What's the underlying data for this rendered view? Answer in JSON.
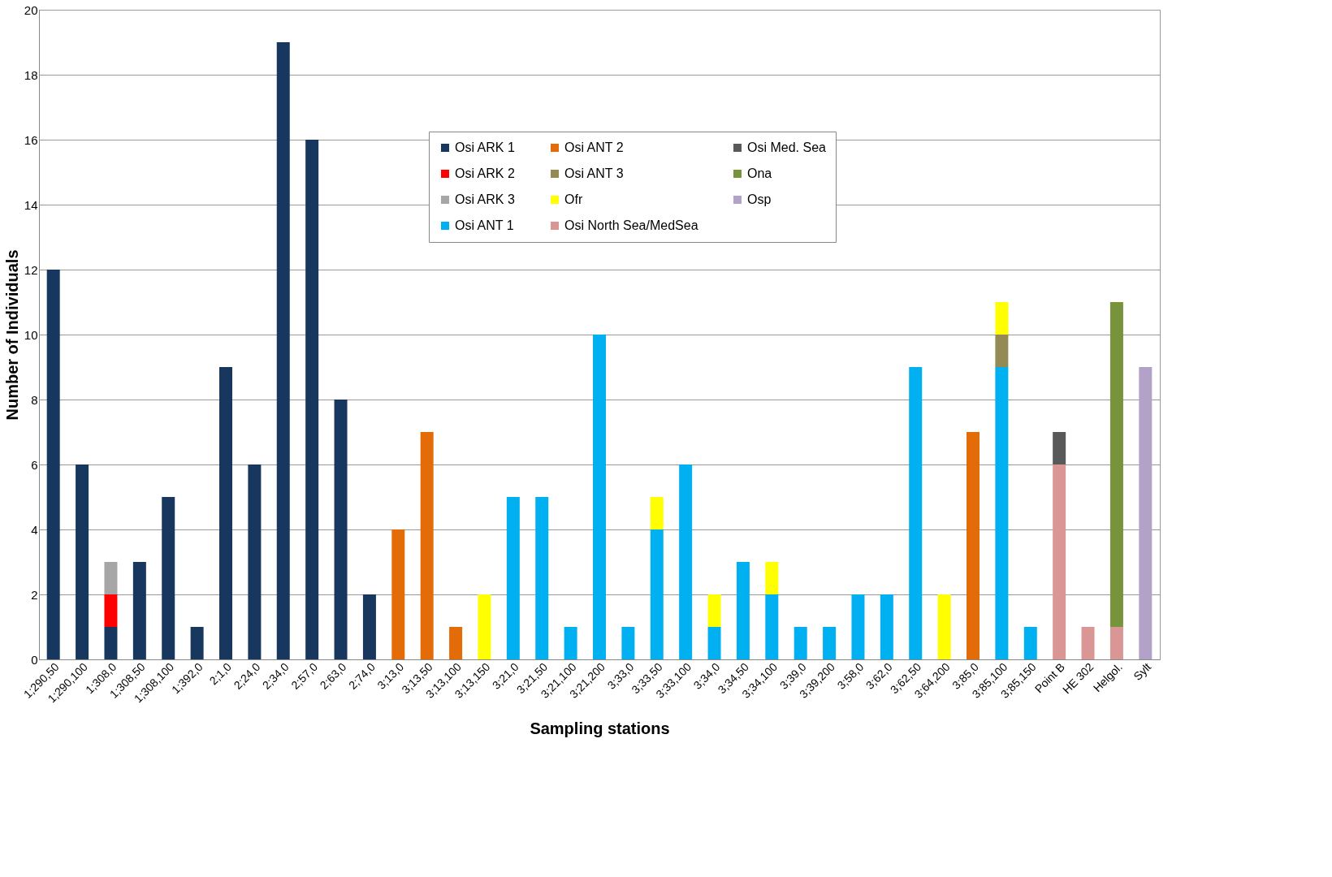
{
  "chart_data": {
    "type": "bar",
    "stacked": true,
    "xlabel": "Sampling stations",
    "ylabel": "Number of Individuals",
    "categories": [
      "1;290,50",
      "1;290,100",
      "1;308,0",
      "1;308,50",
      "1;308,100",
      "1;392,0",
      "2;1,0",
      "2;24,0",
      "2;34,0",
      "2;57,0",
      "2;63,0",
      "2;74,0",
      "3;13,0",
      "3;13,50",
      "3;13,100",
      "3;13,150",
      "3;21,0",
      "3;21,50",
      "3;21,100",
      "3;21,200",
      "3;33,0",
      "3;33,50",
      "3;33,100",
      "3;34,0",
      "3;34,50",
      "3;34,100",
      "3;39,0",
      "3;39,200",
      "3;58,0",
      "3;62,0",
      "3;62,50",
      "3;64,200",
      "3;85,0",
      "3;85,100",
      "3;85,150",
      "Point B",
      "HE 302",
      "Helgol.",
      "Sylt"
    ],
    "series": [
      {
        "name": "Osi ARK 1",
        "color": "#17375e",
        "values": [
          12,
          6,
          1,
          3,
          5,
          1,
          9,
          6,
          19,
          16,
          8,
          2,
          null,
          null,
          null,
          null,
          null,
          null,
          null,
          null,
          null,
          null,
          null,
          null,
          null,
          null,
          null,
          null,
          null,
          null,
          null,
          null,
          null,
          null,
          null,
          null,
          null,
          null,
          null
        ]
      },
      {
        "name": "Osi ARK 2",
        "color": "#ff0000",
        "values": [
          null,
          null,
          1,
          null,
          null,
          null,
          null,
          null,
          null,
          null,
          null,
          null,
          null,
          null,
          null,
          null,
          null,
          null,
          null,
          null,
          null,
          null,
          null,
          null,
          null,
          null,
          null,
          null,
          null,
          null,
          null,
          null,
          null,
          null,
          null,
          null,
          null,
          null,
          null
        ]
      },
      {
        "name": "Osi ARK 3",
        "color": "#a6a6a6",
        "values": [
          null,
          null,
          1,
          null,
          null,
          null,
          null,
          null,
          null,
          null,
          null,
          null,
          null,
          null,
          null,
          null,
          null,
          null,
          null,
          null,
          null,
          null,
          null,
          null,
          null,
          null,
          null,
          null,
          null,
          null,
          null,
          null,
          null,
          null,
          null,
          null,
          null,
          null,
          null
        ]
      },
      {
        "name": "Osi ANT 1",
        "color": "#00b0f0",
        "values": [
          null,
          null,
          null,
          null,
          null,
          null,
          null,
          null,
          null,
          null,
          null,
          null,
          null,
          null,
          null,
          null,
          5,
          5,
          1,
          10,
          1,
          4,
          6,
          1,
          3,
          2,
          1,
          1,
          2,
          2,
          9,
          null,
          null,
          9,
          1,
          null,
          null,
          null,
          null
        ]
      },
      {
        "name": "Osi ANT 2",
        "color": "#e36c09",
        "values": [
          null,
          null,
          null,
          null,
          null,
          null,
          null,
          null,
          null,
          null,
          null,
          null,
          4,
          7,
          1,
          null,
          null,
          null,
          null,
          null,
          null,
          null,
          null,
          null,
          null,
          null,
          null,
          null,
          null,
          null,
          null,
          null,
          7,
          null,
          null,
          null,
          null,
          null,
          null
        ]
      },
      {
        "name": "Osi ANT 3",
        "color": "#948a54",
        "values": [
          null,
          null,
          null,
          null,
          null,
          null,
          null,
          null,
          null,
          null,
          null,
          null,
          null,
          null,
          null,
          null,
          null,
          null,
          null,
          null,
          null,
          null,
          null,
          null,
          null,
          null,
          null,
          null,
          null,
          null,
          null,
          null,
          null,
          1,
          null,
          null,
          null,
          null,
          null
        ]
      },
      {
        "name": "Ofr",
        "color": "#ffff00",
        "values": [
          null,
          null,
          null,
          null,
          null,
          null,
          null,
          null,
          null,
          null,
          null,
          null,
          null,
          null,
          null,
          2,
          null,
          null,
          null,
          null,
          null,
          1,
          null,
          1,
          null,
          1,
          null,
          null,
          null,
          null,
          null,
          2,
          null,
          1,
          null,
          null,
          null,
          null,
          null
        ]
      },
      {
        "name": "Osi North Sea/MedSea",
        "color": "#d99694",
        "values": [
          null,
          null,
          null,
          null,
          null,
          null,
          null,
          null,
          null,
          null,
          null,
          null,
          null,
          null,
          null,
          null,
          null,
          null,
          null,
          null,
          null,
          null,
          null,
          null,
          null,
          null,
          null,
          null,
          null,
          null,
          null,
          null,
          null,
          null,
          null,
          6,
          1,
          1,
          null
        ]
      },
      {
        "name": "Osi Med. Sea",
        "color": "#595959",
        "values": [
          null,
          null,
          null,
          null,
          null,
          null,
          null,
          null,
          null,
          null,
          null,
          null,
          null,
          null,
          null,
          null,
          null,
          null,
          null,
          null,
          null,
          null,
          null,
          null,
          null,
          null,
          null,
          null,
          null,
          null,
          null,
          null,
          null,
          null,
          null,
          1,
          null,
          null,
          null
        ]
      },
      {
        "name": "Ona",
        "color": "#77933c",
        "values": [
          null,
          null,
          null,
          null,
          null,
          null,
          null,
          null,
          null,
          null,
          null,
          null,
          null,
          null,
          null,
          null,
          null,
          null,
          null,
          null,
          null,
          null,
          null,
          null,
          null,
          null,
          null,
          null,
          null,
          null,
          null,
          null,
          null,
          null,
          null,
          null,
          null,
          10,
          null
        ]
      },
      {
        "name": "Osp",
        "color": "#b3a2c7",
        "values": [
          null,
          null,
          null,
          null,
          null,
          null,
          null,
          null,
          null,
          null,
          null,
          null,
          null,
          null,
          null,
          null,
          null,
          null,
          null,
          null,
          null,
          null,
          null,
          null,
          null,
          null,
          null,
          null,
          null,
          null,
          null,
          null,
          null,
          null,
          null,
          null,
          null,
          null,
          9
        ]
      }
    ],
    "ylim": [
      0,
      20
    ],
    "yticks": [
      0,
      2,
      4,
      6,
      8,
      10,
      12,
      14,
      16,
      18,
      20
    ],
    "grid": "y",
    "legend": "top"
  }
}
